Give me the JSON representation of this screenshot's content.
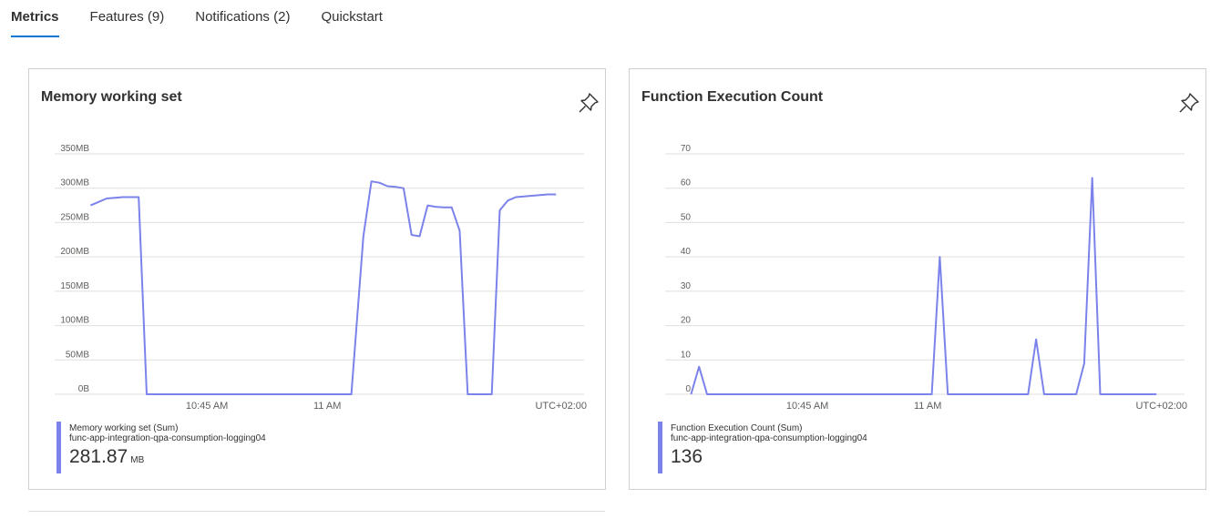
{
  "tabs": [
    {
      "label": "Metrics",
      "active": true
    },
    {
      "label": "Features (9)",
      "active": false
    },
    {
      "label": "Notifications (2)",
      "active": false
    },
    {
      "label": "Quickstart",
      "active": false
    }
  ],
  "accent_color": "#0078d4",
  "series_color": "#7b83eb",
  "cards": [
    {
      "title": "Memory working set",
      "icon": "pin-icon",
      "legend": {
        "name": "Memory working set (Sum)",
        "resource": "func-app-integration-qpa-consumption-logging04",
        "value": "281.87",
        "unit": "MB"
      }
    },
    {
      "title": "Function Execution Count",
      "icon": "pin-icon",
      "legend": {
        "name": "Function Execution Count (Sum)",
        "resource": "func-app-integration-qpa-consumption-logging04",
        "value": "136",
        "unit": ""
      }
    }
  ],
  "chart_data": [
    {
      "type": "line",
      "title": "Memory working set",
      "ylabel": "",
      "xlabel": "",
      "ylim": [
        0,
        350
      ],
      "y_ticks": [
        0,
        50,
        100,
        150,
        200,
        250,
        300,
        350
      ],
      "y_tick_labels": [
        "0B",
        "50MB",
        "100MB",
        "150MB",
        "200MB",
        "250MB",
        "300MB",
        "350MB"
      ],
      "x_range_minutes": [
        30,
        92
      ],
      "x_ticks": [
        45,
        60
      ],
      "x_tick_labels": [
        "10:45 AM",
        "11 AM"
      ],
      "timezone_label": "UTC+02:00",
      "grid": true,
      "series": [
        {
          "name": "Memory working set (Sum)",
          "unit": "MB",
          "x": [
            30.5,
            31.5,
            32.5,
            33.5,
            34.5,
            35.5,
            36.5,
            37.5,
            39,
            41,
            43,
            45,
            47,
            49,
            51,
            53,
            55,
            57,
            59,
            61,
            63,
            64.5,
            65.5,
            66.5,
            67.5,
            68.5,
            69.5,
            70.5,
            71.5,
            72.5,
            73.5,
            74.5,
            75.5,
            76.5,
            77.5,
            78.5,
            79.5,
            80.5,
            81.5,
            82.5,
            83.5,
            84.5,
            85.5,
            86.5,
            87.5,
            88.5
          ],
          "values": [
            275,
            280,
            285,
            286,
            287,
            287,
            287,
            0,
            0,
            0,
            0,
            0,
            0,
            0,
            0,
            0,
            0,
            0,
            0,
            0,
            0,
            230,
            310,
            308,
            303,
            302,
            300,
            232,
            230,
            275,
            273,
            272,
            272,
            238,
            0,
            0,
            0,
            0,
            268,
            282,
            287,
            288,
            289,
            290,
            291,
            291
          ]
        }
      ]
    },
    {
      "type": "line",
      "title": "Function Execution Count",
      "ylabel": "",
      "xlabel": "",
      "ylim": [
        0,
        70
      ],
      "y_ticks": [
        0,
        10,
        20,
        30,
        40,
        50,
        60,
        70
      ],
      "y_tick_labels": [
        "0",
        "10",
        "20",
        "30",
        "40",
        "50",
        "60",
        "70"
      ],
      "x_range_minutes": [
        30,
        92
      ],
      "x_ticks": [
        45,
        60
      ],
      "x_tick_labels": [
        "10:45 AM",
        "11 AM"
      ],
      "timezone_label": "UTC+02:00",
      "grid": true,
      "series": [
        {
          "name": "Function Execution Count (Sum)",
          "unit": "",
          "x": [
            30.5,
            31.5,
            32.5,
            34,
            36,
            38,
            40,
            42,
            44,
            46,
            48,
            50,
            52,
            54,
            56,
            58,
            59.5,
            60.5,
            61.5,
            62.5,
            64,
            66,
            68,
            70,
            71.5,
            72.5,
            73.5,
            74.5,
            75.5,
            76.5,
            77.5,
            78.5,
            79.5,
            80.5,
            81.5,
            82.5,
            83.5,
            85,
            87,
            88.5
          ],
          "values": [
            0,
            8,
            0,
            0,
            0,
            0,
            0,
            0,
            0,
            0,
            0,
            0,
            0,
            0,
            0,
            0,
            0,
            0,
            40,
            0,
            0,
            0,
            0,
            0,
            0,
            0,
            16,
            0,
            0,
            0,
            0,
            0,
            9,
            63,
            0,
            0,
            0,
            0,
            0,
            0
          ]
        }
      ]
    }
  ]
}
